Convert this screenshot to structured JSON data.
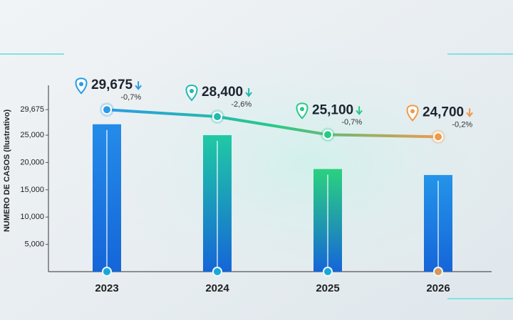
{
  "chart_data": {
    "type": "bar",
    "y_label": "NUMERO DE CASOS (Ilustrativo)",
    "categories": [
      "2023",
      "2024",
      "2025",
      "2026"
    ],
    "ylim": [
      0,
      34000
    ],
    "yticks": [
      {
        "value": 5000,
        "label": "5,000"
      },
      {
        "value": 10000,
        "label": "10,000"
      },
      {
        "value": 15000,
        "label": "15,000"
      },
      {
        "value": 20000,
        "label": "20,000"
      },
      {
        "value": 25000,
        "label": "25,000"
      },
      {
        "value": 29675,
        "label": "29,675"
      }
    ],
    "series": [
      {
        "type": "bar",
        "values": [
          27000,
          25000,
          18800,
          17700
        ],
        "colors": [
          "#1a86e8",
          "#16c7a0",
          "#22d07a",
          "#1a8fe8"
        ]
      },
      {
        "type": "line",
        "values": [
          29675,
          28400,
          25100,
          24700
        ],
        "value_labels": [
          "29,675",
          "28,400",
          "25,100",
          "24,700"
        ],
        "changes": [
          "-0,7%",
          "-2,6%",
          "-0,7%",
          "-0,2%"
        ],
        "colors": [
          "#2a9be6",
          "#22b9b0",
          "#27c98a",
          "#ee9a4a"
        ]
      }
    ]
  }
}
